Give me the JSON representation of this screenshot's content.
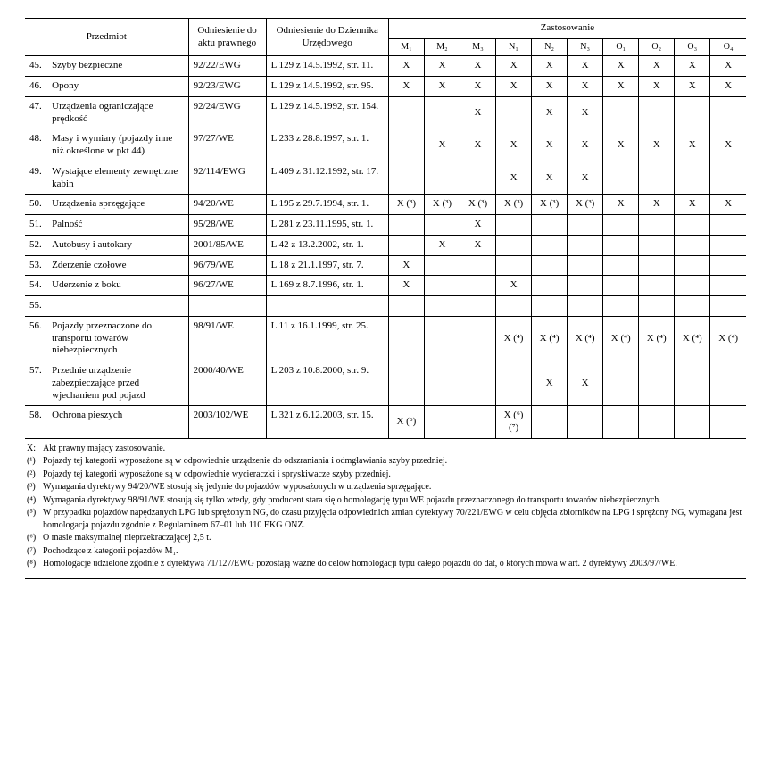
{
  "header": {
    "subject": "Przedmiot",
    "legal_ref": "Odniesienie do aktu prawnego",
    "journal_ref": "Odniesienie do Dziennika Urzędowego",
    "application": "Zastosowanie",
    "cols": [
      "M₁",
      "M₂",
      "M₃",
      "N₁",
      "N₂",
      "N₃",
      "O₁",
      "O₂",
      "O₃",
      "O₄"
    ]
  },
  "rows": [
    {
      "num": "45.",
      "subj": "Szyby bezpieczne",
      "ref": "92/22/EWG",
      "dz": "L 129 z 14.5.1992, str. 11.",
      "app": [
        "X",
        "X",
        "X",
        "X",
        "X",
        "X",
        "X",
        "X",
        "X",
        "X"
      ]
    },
    {
      "num": "46.",
      "subj": "Opony",
      "ref": "92/23/EWG",
      "dz": "L 129 z 14.5.1992, str. 95.",
      "app": [
        "X",
        "X",
        "X",
        "X",
        "X",
        "X",
        "X",
        "X",
        "X",
        "X"
      ]
    },
    {
      "num": "47.",
      "subj": "Urządzenia ograniczające prędkość",
      "ref": "92/24/EWG",
      "dz": "L 129 z 14.5.1992, str. 154.",
      "app": [
        "",
        "",
        "X",
        "",
        "X",
        "X",
        "",
        "",
        "",
        ""
      ]
    },
    {
      "num": "48.",
      "subj": "Masy i wymiary (pojazdy inne niż określone w pkt 44)",
      "ref": "97/27/WE",
      "dz": "L 233 z 28.8.1997, str. 1.",
      "app": [
        "",
        "X",
        "X",
        "X",
        "X",
        "X",
        "X",
        "X",
        "X",
        "X"
      ]
    },
    {
      "num": "49.",
      "subj": "Wystające elementy zewnętrzne kabin",
      "ref": "92/114/EWG",
      "dz": "L 409 z 31.12.1992, str. 17.",
      "app": [
        "",
        "",
        "",
        "X",
        "X",
        "X",
        "",
        "",
        "",
        ""
      ]
    },
    {
      "num": "50.",
      "subj": "Urządzenia sprzęgające",
      "ref": "94/20/WE",
      "dz": "L 195 z 29.7.1994, str. 1.",
      "app": [
        "X (³)",
        "X (³)",
        "X (³)",
        "X (³)",
        "X (³)",
        "X (³)",
        "X",
        "X",
        "X",
        "X"
      ]
    },
    {
      "num": "51.",
      "subj": "Palność",
      "ref": "95/28/WE",
      "dz": "L 281 z 23.11.1995, str. 1.",
      "app": [
        "",
        "",
        "X",
        "",
        "",
        "",
        "",
        "",
        "",
        ""
      ]
    },
    {
      "num": "52.",
      "subj": "Autobusy i autokary",
      "ref": "2001/85/WE",
      "dz": "L 42 z 13.2.2002, str. 1.",
      "app": [
        "",
        "X",
        "X",
        "",
        "",
        "",
        "",
        "",
        "",
        ""
      ]
    },
    {
      "num": "53.",
      "subj": "Zderzenie czołowe",
      "ref": "96/79/WE",
      "dz": "L 18 z 21.1.1997, str. 7.",
      "app": [
        "X",
        "",
        "",
        "",
        "",
        "",
        "",
        "",
        "",
        ""
      ]
    },
    {
      "num": "54.",
      "subj": "Uderzenie z boku",
      "ref": "96/27/WE",
      "dz": "L 169 z 8.7.1996, str. 1.",
      "app": [
        "X",
        "",
        "",
        "X",
        "",
        "",
        "",
        "",
        "",
        ""
      ]
    },
    {
      "num": "55.",
      "subj": "",
      "ref": "",
      "dz": "",
      "app": [
        "",
        "",
        "",
        "",
        "",
        "",
        "",
        "",
        "",
        ""
      ]
    },
    {
      "num": "56.",
      "subj": "Pojazdy przeznaczone do transportu towarów niebezpiecznych",
      "ref": "98/91/WE",
      "dz": "L 11 z 16.1.1999, str. 25.",
      "app": [
        "",
        "",
        "",
        "X (⁴)",
        "X (⁴)",
        "X (⁴)",
        "X (⁴)",
        "X (⁴)",
        "X (⁴)",
        "X (⁴)"
      ]
    },
    {
      "num": "57.",
      "subj": "Przednie urządzenie zabezpieczające przed wjechaniem pod pojazd",
      "ref": "2000/40/WE",
      "dz": "L 203 z 10.8.2000, str. 9.",
      "app": [
        "",
        "",
        "",
        "",
        "X",
        "X",
        "",
        "",
        "",
        ""
      ]
    },
    {
      "num": "58.",
      "subj": "Ochrona pieszych",
      "ref": "2003/102/WE",
      "dz": "L 321 z 6.12.2003, str. 15.",
      "app": [
        "X (⁶)",
        "",
        "",
        "X (⁶) (⁷)",
        "",
        "",
        "",
        "",
        "",
        ""
      ]
    }
  ],
  "notes": [
    {
      "tag": "X:",
      "txt": "Akt prawny mający zastosowanie."
    },
    {
      "tag": "(¹)",
      "txt": "Pojazdy tej kategorii wyposażone są w odpowiednie urządzenie do odszraniania i odmgławiania szyby przedniej."
    },
    {
      "tag": "(²)",
      "txt": "Pojazdy tej kategorii wyposażone są w odpowiednie wycieraczki i spryskiwacze szyby przedniej."
    },
    {
      "tag": "(³)",
      "txt": "Wymagania dyrektywy 94/20/WE stosują się jedynie do pojazdów wyposażonych w urządzenia sprzęgające."
    },
    {
      "tag": "(⁴)",
      "txt": "Wymagania dyrektywy 98/91/WE stosują się tylko wtedy, gdy producent stara się o homologację typu WE pojazdu przeznaczonego do transportu towarów niebezpiecznych."
    },
    {
      "tag": "(⁵)",
      "txt": "W przypadku pojazdów napędzanych LPG lub sprężonym NG, do czasu przyjęcia odpowiednich zmian dyrektywy 70/221/EWG w celu objęcia zbiorników na LPG i sprężony NG, wymagana jest homologacja pojazdu zgodnie z Regulaminem 67–01 lub 110 EKG ONZ."
    },
    {
      "tag": "(⁶)",
      "txt": "O masie maksymalnej nieprzekraczającej 2,5 t."
    },
    {
      "tag": "(⁷)",
      "txt": "Pochodzące z kategorii pojazdów M₁."
    },
    {
      "tag": "(⁸)",
      "txt": "Homologacje udzielone zgodnie z dyrektywą 71/127/EWG pozostają ważne do celów homologacji typu całego pojazdu do dat, o których mowa w art. 2 dyrektywy 2003/97/WE."
    }
  ]
}
